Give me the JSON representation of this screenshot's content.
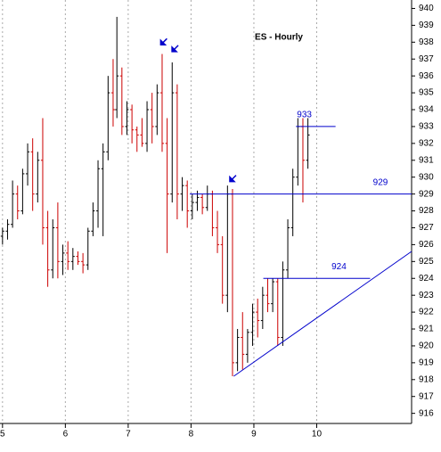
{
  "chart_data": {
    "type": "ohlc",
    "title": "ES - Hourly",
    "up_color": "#000000",
    "down_color": "#cc0000",
    "level_color": "#0000cc",
    "grid": true,
    "xlim": [
      4.96,
      11.51
    ],
    "xticks": [
      5,
      6,
      7,
      8,
      9,
      10
    ],
    "ylim": [
      915.4,
      940.5
    ],
    "yticks": [
      916,
      917,
      918,
      919,
      920,
      921,
      922,
      923,
      924,
      925,
      926,
      927,
      928,
      929,
      930,
      931,
      932,
      933,
      934,
      935,
      936,
      937,
      938,
      939,
      940
    ],
    "x": [
      5.0,
      5.08,
      5.16,
      5.24,
      5.32,
      5.4,
      5.48,
      5.56,
      5.64,
      5.72,
      5.8,
      5.88,
      5.96,
      6.04,
      6.12,
      6.2,
      6.28,
      6.36,
      6.44,
      6.52,
      6.6,
      6.68,
      6.76,
      6.82,
      6.9,
      6.98,
      7.06,
      7.14,
      7.22,
      7.3,
      7.38,
      7.46,
      7.54,
      7.62,
      7.7,
      7.78,
      7.86,
      7.94,
      8.02,
      8.1,
      8.18,
      8.26,
      8.34,
      8.42,
      8.5,
      8.58,
      8.66,
      8.74,
      8.82,
      8.9,
      8.98,
      9.06,
      9.14,
      9.22,
      9.3,
      9.38,
      9.46,
      9.54,
      9.62,
      9.7,
      9.78,
      9.86
    ],
    "open": [
      926.5,
      926.8,
      927.2,
      929,
      928,
      930.2,
      931.5,
      929,
      931,
      927,
      924.5,
      927,
      925,
      925.5,
      925,
      925.3,
      925,
      924.8,
      926.8,
      928,
      930.5,
      931.5,
      935,
      934,
      936,
      933,
      934,
      932.8,
      932.5,
      932,
      934,
      933,
      935,
      932,
      929,
      935,
      929,
      929.5,
      928,
      928.5,
      928.8,
      928.2,
      929,
      927,
      926,
      923,
      929,
      919,
      920.5,
      919.5,
      920.8,
      922,
      921.5,
      923,
      922.5,
      923.8,
      920.5,
      924.5,
      927,
      930,
      933,
      931
    ],
    "high": [
      927,
      927.5,
      929.8,
      929.5,
      930.5,
      932,
      932.3,
      931.5,
      933.5,
      928,
      927.5,
      928.5,
      926,
      926.2,
      925.8,
      925.6,
      925.5,
      927,
      928.5,
      931,
      932,
      936,
      937,
      939.5,
      936.5,
      934.5,
      934.3,
      933,
      933.5,
      934.5,
      935,
      935.5,
      937.3,
      933.5,
      936.8,
      935.5,
      930,
      929.8,
      929,
      929.2,
      929,
      929.5,
      929.2,
      928,
      926.5,
      929.5,
      929.3,
      921,
      922,
      921,
      922.5,
      922.8,
      923.5,
      924,
      924,
      924,
      925,
      927.5,
      930.5,
      933.5,
      933.5,
      933.5
    ],
    "low": [
      926,
      926.3,
      927,
      927.5,
      927.8,
      929.5,
      928,
      928.5,
      926,
      923.5,
      924,
      924,
      924.2,
      924.5,
      924.5,
      924.8,
      924.3,
      924.5,
      926.5,
      927,
      926.5,
      931,
      933,
      933.5,
      932.5,
      932.5,
      932,
      931.5,
      931.8,
      931.5,
      932,
      932.5,
      931.5,
      925.5,
      928.5,
      927.5,
      928,
      927,
      927.5,
      928,
      927.8,
      928,
      926.5,
      925.5,
      922.5,
      922,
      918.2,
      918.5,
      918.6,
      919,
      920,
      920.5,
      921,
      922,
      922,
      920,
      920,
      924,
      926.5,
      929.5,
      928.5,
      930.5
    ],
    "close": [
      926.8,
      927.2,
      929,
      928,
      930.2,
      931.5,
      929,
      931,
      927,
      924.5,
      927,
      925,
      925.5,
      925,
      925.3,
      925,
      924.8,
      926.8,
      928,
      930.5,
      931.5,
      935,
      934,
      936,
      933,
      934,
      932.8,
      932.5,
      932,
      934,
      933,
      935,
      932,
      929,
      935,
      929,
      929.5,
      928,
      928.5,
      928.8,
      928.2,
      929,
      927,
      926,
      923,
      929,
      919,
      920.5,
      919.5,
      920.8,
      922,
      921.5,
      923,
      922.5,
      923.8,
      920.5,
      924.5,
      927,
      930,
      933,
      931,
      932.5
    ],
    "levels": [
      {
        "value": 933,
        "x_range": [
          9.67,
          10.3
        ]
      },
      {
        "value": 929,
        "x_range": [
          7.98,
          11.51
        ]
      },
      {
        "value": 924,
        "x_range": [
          9.15,
          10.85
        ]
      }
    ],
    "trendline": {
      "x": [
        8.68,
        11.51
      ],
      "y": [
        918.2,
        925.6
      ]
    },
    "arrows": [
      [
        7.56,
        938.0
      ],
      [
        7.74,
        937.6
      ],
      [
        8.66,
        929.9
      ]
    ]
  }
}
